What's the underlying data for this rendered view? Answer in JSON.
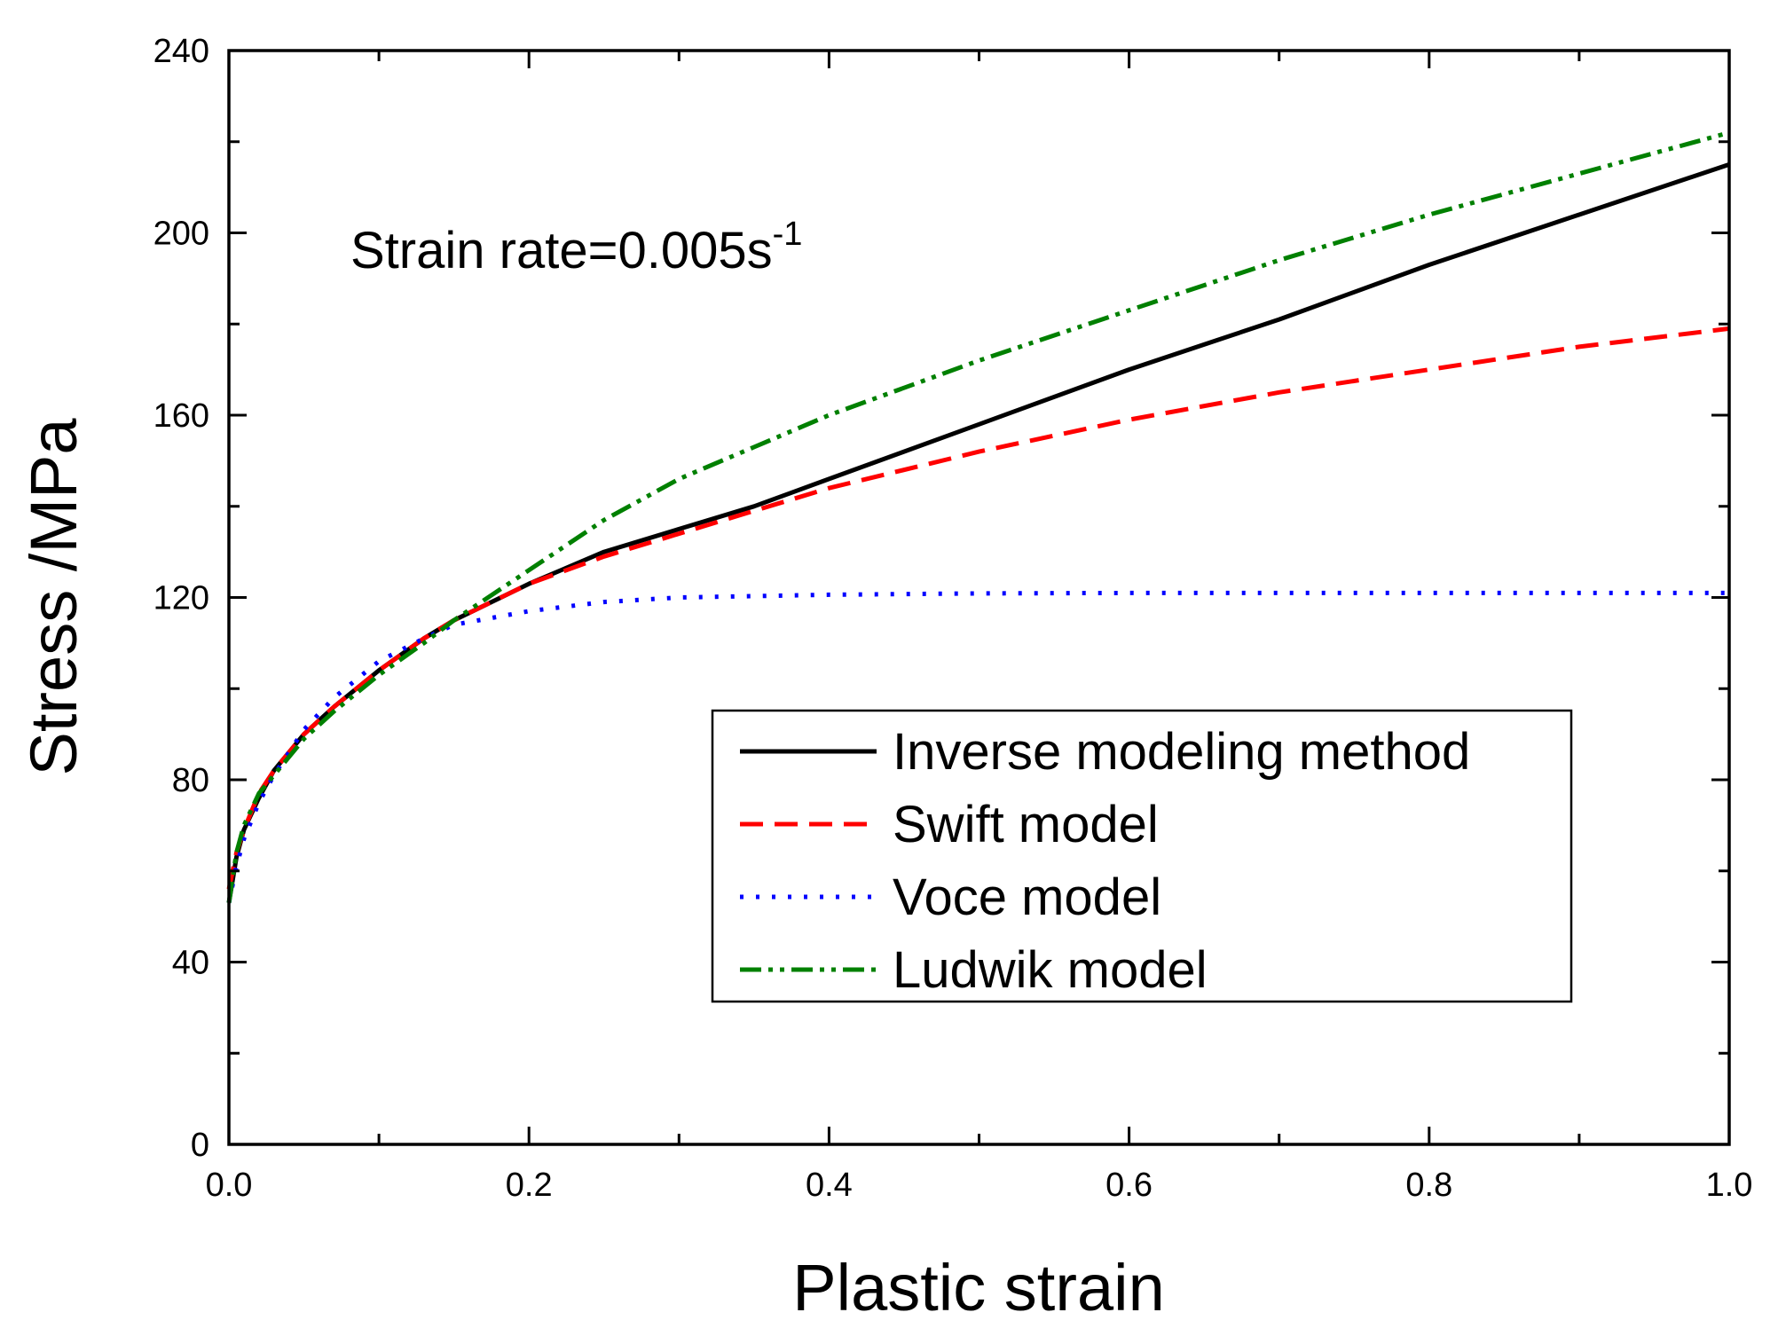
{
  "chart_data": {
    "type": "line",
    "title": "",
    "xlabel": "Plastic strain",
    "ylabel": "Stress  /MPa",
    "xlim": [
      0.0,
      1.0
    ],
    "ylim": [
      0,
      240
    ],
    "xticks": [
      "0.0",
      "0.2",
      "0.4",
      "0.6",
      "0.8",
      "1.0"
    ],
    "yticks": [
      "0",
      "40",
      "80",
      "120",
      "160",
      "200",
      "240"
    ],
    "grid": false,
    "annotation": {
      "base": "Strain rate=0.005s",
      "superscript": "-1"
    },
    "legend_position": "bottom-right",
    "series": [
      {
        "name": "Inverse modeling method",
        "color": "#000000",
        "style": "solid",
        "x": [
          0,
          0.005,
          0.01,
          0.02,
          0.03,
          0.05,
          0.07,
          0.1,
          0.13,
          0.15,
          0.2,
          0.25,
          0.3,
          0.35,
          0.4,
          0.5,
          0.6,
          0.7,
          0.8,
          0.9,
          1.0
        ],
        "y": [
          53,
          63,
          69,
          76,
          82,
          90,
          96,
          104,
          111,
          115,
          123,
          130,
          135,
          140,
          146,
          158,
          170,
          181,
          193,
          204,
          215
        ]
      },
      {
        "name": "Swift model",
        "color": "#ff0000",
        "style": "dashed",
        "x": [
          0,
          0.005,
          0.01,
          0.02,
          0.03,
          0.05,
          0.07,
          0.1,
          0.13,
          0.15,
          0.2,
          0.25,
          0.3,
          0.35,
          0.4,
          0.5,
          0.6,
          0.7,
          0.8,
          0.9,
          1.0
        ],
        "y": [
          56,
          64,
          69,
          77,
          82,
          90,
          96,
          104,
          111,
          115,
          123,
          129,
          134,
          139,
          144,
          152,
          159,
          165,
          170,
          175,
          179
        ]
      },
      {
        "name": "Voce model",
        "color": "#0000ff",
        "style": "dotted",
        "x": [
          0,
          0.005,
          0.01,
          0.02,
          0.03,
          0.05,
          0.07,
          0.1,
          0.13,
          0.15,
          0.2,
          0.25,
          0.3,
          0.4,
          0.5,
          0.6,
          0.7,
          0.8,
          0.9,
          1.0
        ],
        "y": [
          53,
          61,
          67,
          75,
          81,
          91,
          98,
          106,
          111,
          114,
          117,
          119,
          120,
          120.6,
          120.9,
          121,
          121,
          121,
          121,
          121
        ]
      },
      {
        "name": "Ludwik model",
        "color": "#008000",
        "style": "dashdotdot",
        "x": [
          0,
          0.005,
          0.01,
          0.02,
          0.03,
          0.05,
          0.07,
          0.1,
          0.13,
          0.15,
          0.2,
          0.25,
          0.3,
          0.35,
          0.4,
          0.5,
          0.6,
          0.7,
          0.8,
          0.9,
          1.0
        ],
        "y": [
          53,
          64,
          70,
          77,
          81,
          89,
          95,
          103,
          110,
          115,
          126,
          137,
          146,
          153,
          160,
          172,
          183,
          194,
          204,
          213,
          222
        ]
      }
    ]
  }
}
